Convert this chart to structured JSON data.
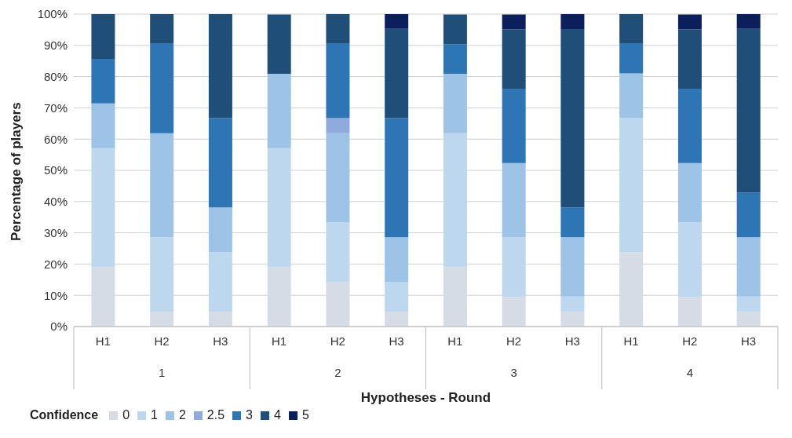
{
  "chart_data": {
    "type": "bar",
    "stacked": true,
    "xlabel": "Hypotheses - Round",
    "ylabel": "Percentage of players",
    "legend_title": "Confidence",
    "legend": "bottom left",
    "grid": "y",
    "categories": [
      "H1",
      "H2",
      "H3",
      "H1",
      "H2",
      "H3",
      "H1",
      "H2",
      "H3",
      "H1",
      "H2",
      "H3"
    ],
    "annotations": [
      "1",
      "2",
      "3",
      "4"
    ],
    "ylim": [
      0,
      100
    ],
    "yticks": [
      {
        "value": 0,
        "label": "0%"
      },
      {
        "value": 10,
        "label": "10%"
      },
      {
        "value": 20,
        "label": "20%"
      },
      {
        "value": 30,
        "label": "30%"
      },
      {
        "value": 40,
        "label": "40%"
      },
      {
        "value": 50,
        "label": "50%"
      },
      {
        "value": 60,
        "label": "60%"
      },
      {
        "value": 70,
        "label": "70%"
      },
      {
        "value": 80,
        "label": "80%"
      },
      {
        "value": 90,
        "label": "90%"
      },
      {
        "value": 100,
        "label": "100%"
      }
    ],
    "series": [
      {
        "name": "0",
        "color": "#d6dce5",
        "values": [
          19.0,
          4.8,
          4.8,
          19.0,
          14.3,
          4.8,
          19.0,
          9.5,
          4.8,
          23.8,
          9.5,
          4.8
        ]
      },
      {
        "name": "1",
        "color": "#bdd7ee",
        "values": [
          38.1,
          23.8,
          19.0,
          38.1,
          19.0,
          9.5,
          42.9,
          19.0,
          4.8,
          42.9,
          23.8,
          4.8
        ]
      },
      {
        "name": "2",
        "color": "#9dc3e6",
        "values": [
          14.3,
          33.3,
          14.3,
          23.8,
          28.6,
          14.3,
          19.0,
          23.8,
          19.0,
          14.3,
          19.0,
          19.0
        ]
      },
      {
        "name": "2.5",
        "color": "#8faadc",
        "values": [
          0,
          0,
          0,
          0,
          4.8,
          0,
          0,
          0,
          0,
          0,
          0,
          0
        ]
      },
      {
        "name": "3",
        "color": "#2e75b6",
        "values": [
          14.3,
          28.6,
          28.6,
          0,
          23.8,
          38.1,
          9.5,
          23.8,
          9.5,
          9.5,
          23.8,
          14.3
        ]
      },
      {
        "name": "4",
        "color": "#1f4e79",
        "values": [
          14.3,
          9.5,
          33.3,
          19.0,
          9.5,
          28.6,
          9.5,
          19.0,
          57.1,
          9.5,
          19.0,
          52.4
        ]
      },
      {
        "name": "5",
        "color": "#0b1f5c",
        "values": [
          0,
          0,
          0,
          0,
          0,
          4.8,
          0,
          4.8,
          4.8,
          0,
          4.8,
          4.8
        ]
      }
    ]
  }
}
